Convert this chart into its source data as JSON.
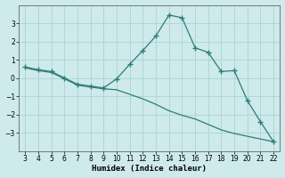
{
  "xlabel": "Humidex (Indice chaleur)",
  "background_color": "#ceeaea",
  "grid_color": "#aad4d4",
  "line_color": "#2d7d78",
  "x_curve1": [
    3,
    4,
    5,
    6,
    7,
    8,
    9,
    10,
    11,
    12,
    13,
    14,
    15,
    16,
    17,
    18,
    19,
    20,
    21,
    22
  ],
  "y_curve1": [
    0.6,
    0.45,
    0.35,
    0.0,
    -0.35,
    -0.45,
    -0.55,
    -0.05,
    0.75,
    1.5,
    2.3,
    3.45,
    3.3,
    1.65,
    1.4,
    0.35,
    0.4,
    -1.25,
    -2.4,
    -3.5
  ],
  "x_curve2": [
    3,
    4,
    5,
    6,
    7,
    8,
    9,
    10,
    11,
    12,
    13,
    14,
    15,
    16,
    17,
    18,
    19,
    20,
    21,
    22
  ],
  "y_curve2": [
    0.55,
    0.4,
    0.3,
    -0.05,
    -0.4,
    -0.5,
    -0.6,
    -0.65,
    -0.9,
    -1.15,
    -1.45,
    -1.8,
    -2.05,
    -2.25,
    -2.55,
    -2.85,
    -3.05,
    -3.2,
    -3.35,
    -3.5
  ],
  "xlim": [
    2.5,
    22.5
  ],
  "ylim": [
    -4,
    4
  ],
  "yticks": [
    -3,
    -2,
    -1,
    0,
    1,
    2,
    3
  ],
  "xticks": [
    3,
    4,
    5,
    6,
    7,
    8,
    9,
    10,
    11,
    12,
    13,
    14,
    15,
    16,
    17,
    18,
    19,
    20,
    21,
    22
  ],
  "tick_fontsize": 5.5,
  "xlabel_fontsize": 6.5,
  "marker": "+",
  "marker_size": 4,
  "marker_ew": 1.0,
  "linewidth": 0.9
}
